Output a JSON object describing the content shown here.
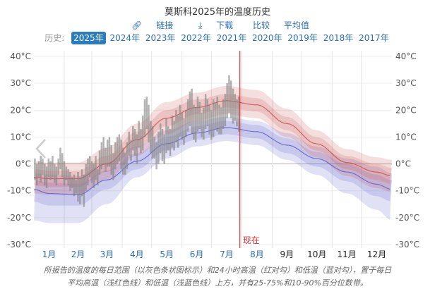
{
  "header": {
    "title": "莫斯科2025年的温度历史",
    "links": [
      {
        "icon": "link-icon",
        "label": "链接"
      },
      {
        "icon": "download-icon",
        "label": "下载"
      },
      {
        "icon": "",
        "label": "比较"
      },
      {
        "icon": "",
        "label": "平均值"
      }
    ],
    "history_label": "历史:",
    "years": [
      "2025年",
      "2024年",
      "2023年",
      "2022年",
      "2021年",
      "2020年",
      "2019年",
      "2018年",
      "2017年"
    ],
    "selected_year": "2025年"
  },
  "caption": [
    "所报告的温度的每日范围（以灰色条状图标示）和24小时高温（红对勾）和低温（蓝对勾），置于每日",
    "平均高温（浅红色线）和低温（浅蓝色线）上方，并有25-75%和10-90%百分位数带。"
  ],
  "chart_data": {
    "type": "area",
    "ylim": [
      -30,
      40
    ],
    "yticks": [
      "-30°C",
      "-20°C",
      "-10°C",
      "0°C",
      "10°C",
      "20°C",
      "30°C",
      "40°C"
    ],
    "ytick_values": [
      -30,
      -20,
      -10,
      0,
      10,
      20,
      30,
      40
    ],
    "months": [
      "1月",
      "2月",
      "3月",
      "4月",
      "5月",
      "6月",
      "7月",
      "8月",
      "9月",
      "10月",
      "11月",
      "12月"
    ],
    "months_linked_count": 8,
    "now_label": "现在",
    "now_day": 210,
    "colors": {
      "high": "#c84a4a",
      "low": "#5a5ac8",
      "daily": "#808080",
      "now": "#e83030",
      "link": "#2a6ebb"
    },
    "normals": {
      "days": [
        0,
        15,
        45,
        74,
        105,
        135,
        166,
        196,
        227,
        258,
        288,
        319,
        349,
        365
      ],
      "high_mean": [
        -5,
        -5.5,
        -5.5,
        0,
        9,
        17,
        21,
        23.5,
        22,
        15,
        7.5,
        0.5,
        -3,
        -4.5
      ],
      "high_p25": [
        -8,
        -8.5,
        -8.5,
        -3,
        6,
        14,
        18.5,
        21,
        19.5,
        12.5,
        5,
        -2,
        -6,
        -7.5
      ],
      "high_p75": [
        -2,
        -2.5,
        -2.5,
        3,
        12,
        20,
        24,
        26,
        24.5,
        17.5,
        10,
        3,
        0,
        -1.5
      ],
      "high_p10": [
        -11,
        -11.5,
        -11.5,
        -6,
        3,
        11,
        16,
        18.5,
        17,
        10,
        2.5,
        -4.5,
        -9,
        -10.5
      ],
      "high_p90": [
        1,
        0.5,
        0.5,
        6,
        15,
        23,
        26.5,
        29,
        27.5,
        20.5,
        12.5,
        5.5,
        2.5,
        1.5
      ],
      "low_mean": [
        -9.5,
        -11,
        -11.5,
        -6,
        1,
        7.5,
        11.5,
        13.5,
        12,
        7,
        2,
        -3,
        -7.5,
        -9.5
      ],
      "low_p25": [
        -14,
        -15.5,
        -15.5,
        -9.5,
        -2,
        5,
        9,
        11,
        9.5,
        4,
        -1,
        -6.5,
        -12,
        -14
      ],
      "low_p75": [
        -6,
        -7,
        -7.5,
        -2.5,
        4,
        10,
        14,
        16,
        14.5,
        9.5,
        4.5,
        0,
        -4,
        -6
      ],
      "low_p10": [
        -21,
        -22,
        -22,
        -15,
        -5,
        2,
        6.5,
        8.5,
        7,
        1.5,
        -4,
        -11,
        -17,
        -21
      ],
      "low_p90": [
        -3.5,
        -4,
        -4.5,
        0.5,
        6.5,
        12.5,
        16,
        17.5,
        16,
        11.5,
        6.5,
        2,
        -1,
        -3.5
      ]
    },
    "daily_step_days": 2,
    "daily_high": [
      2,
      0,
      1,
      3,
      2,
      0,
      -1,
      2,
      1,
      3,
      0,
      -1,
      2,
      6,
      4,
      1,
      -1,
      -2,
      -3,
      -5,
      -4,
      -6,
      -3,
      -5,
      -2,
      -4,
      0,
      2,
      3,
      1,
      0,
      3,
      -2,
      5,
      8,
      10,
      6,
      9,
      10,
      7,
      4,
      8,
      10,
      11,
      9,
      6,
      4,
      8,
      12,
      9,
      14,
      13,
      11,
      16,
      13,
      18,
      24,
      25,
      22,
      16,
      14,
      10,
      8,
      12,
      15,
      13,
      11,
      17,
      14,
      13,
      18,
      16,
      20,
      18,
      22,
      19,
      17,
      20,
      24,
      27,
      28,
      22,
      21,
      25,
      23,
      19,
      21,
      26,
      24,
      22,
      20,
      24,
      23,
      25,
      22,
      21,
      24,
      26,
      30,
      33,
      31,
      28,
      26,
      24,
      25
    ],
    "daily_low": [
      -6,
      -8,
      -5,
      -7,
      -4,
      -8,
      -9,
      -5,
      -6,
      -5,
      -7,
      -8,
      -4,
      -2,
      -5,
      -8,
      -6,
      -8,
      -10,
      -9,
      -12,
      -11,
      -14,
      -15,
      -12,
      -16,
      -10,
      -8,
      -5,
      -7,
      -9,
      -6,
      -8,
      -4,
      -2,
      0,
      -3,
      -1,
      -1,
      -4,
      -6,
      -2,
      0,
      1,
      -2,
      -4,
      -4,
      -2,
      3,
      1,
      5,
      3,
      0,
      6,
      4,
      5,
      10,
      13,
      8,
      4,
      2,
      2,
      -2,
      0,
      4,
      1,
      0,
      4,
      5,
      3,
      6,
      5,
      8,
      6,
      10,
      9,
      7,
      10,
      12,
      14,
      11,
      9,
      8,
      12,
      13,
      10,
      9,
      13,
      14,
      11,
      9,
      10,
      13,
      12,
      11,
      11,
      13,
      14,
      17,
      19,
      17,
      15,
      16,
      14,
      12
    ]
  }
}
